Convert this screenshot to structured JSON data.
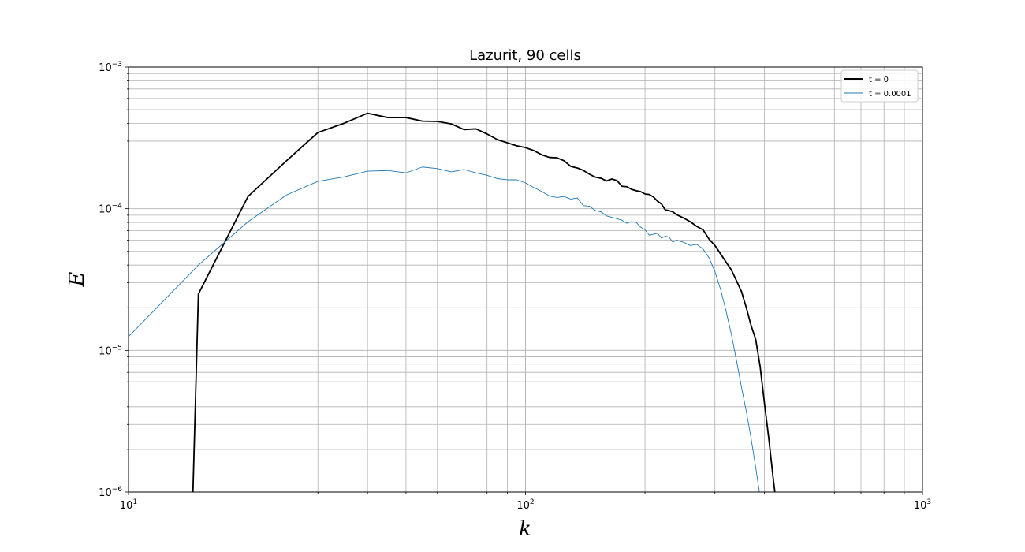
{
  "chart_data": {
    "type": "line",
    "title": "Lazurit, 90 cells",
    "xlabel": "k",
    "ylabel": "E",
    "xscale": "log",
    "yscale": "log",
    "xlim": [
      10,
      1000
    ],
    "ylim": [
      1e-06,
      0.001
    ],
    "grid": "both (major and minor)",
    "legend_position": "top-right",
    "x_tick_labels": [
      {
        "base": "10",
        "exp": "1"
      },
      {
        "base": "10",
        "exp": "2"
      },
      {
        "base": "10",
        "exp": "3"
      }
    ],
    "y_tick_labels": [
      {
        "base": "10",
        "exp": "−6"
      },
      {
        "base": "10",
        "exp": "−5"
      },
      {
        "base": "10",
        "exp": "−4"
      },
      {
        "base": "10",
        "exp": "−3"
      }
    ],
    "series": [
      {
        "name": "t = 0",
        "color": "#000000",
        "points": [
          [
            14.5,
            8e-07
          ],
          [
            15,
            2.5e-05
          ],
          [
            20,
            0.000122
          ],
          [
            25,
            0.000218
          ],
          [
            30,
            0.000345
          ],
          [
            35,
            0.000402
          ],
          [
            40,
            0.000472
          ],
          [
            45,
            0.00044
          ],
          [
            50,
            0.00044
          ],
          [
            55,
            0.000415
          ],
          [
            60,
            0.000413
          ],
          [
            65,
            0.000397
          ],
          [
            70,
            0.000362
          ],
          [
            75,
            0.000366
          ],
          [
            80,
            0.000337
          ],
          [
            85,
            0.000307
          ],
          [
            90,
            0.000292
          ],
          [
            95,
            0.000278
          ],
          [
            100,
            0.00027
          ],
          [
            105,
            0.000257
          ],
          [
            110,
            0.00024
          ],
          [
            115,
            0.00023
          ],
          [
            120,
            0.000229
          ],
          [
            125,
            0.000218
          ],
          [
            130,
            0.000199
          ],
          [
            135,
            0.000194
          ],
          [
            140,
            0.000186
          ],
          [
            145,
            0.000175
          ],
          [
            150,
            0.000167
          ],
          [
            155,
            0.000164
          ],
          [
            160,
            0.000157
          ],
          [
            165,
            0.000162
          ],
          [
            170,
            0.000158
          ],
          [
            175,
            0.000144
          ],
          [
            180,
            0.000143
          ],
          [
            185,
            0.000137
          ],
          [
            190,
            0.000134
          ],
          [
            195,
            0.000132
          ],
          [
            200,
            0.000127
          ],
          [
            205,
            0.000126
          ],
          [
            210,
            0.000121
          ],
          [
            215,
            0.000113
          ],
          [
            220,
            0.000108
          ],
          [
            225,
            9.8e-05
          ],
          [
            230,
            9.7e-05
          ],
          [
            235,
            9.5e-05
          ],
          [
            240,
            9.1e-05
          ],
          [
            250,
            8.6e-05
          ],
          [
            260,
            8.1e-05
          ],
          [
            270,
            7.5e-05
          ],
          [
            280,
            7.1e-05
          ],
          [
            290,
            6.1e-05
          ],
          [
            300,
            5.5e-05
          ],
          [
            310,
            4.8e-05
          ],
          [
            320,
            4.2e-05
          ],
          [
            330,
            3.7e-05
          ],
          [
            340,
            3.1e-05
          ],
          [
            350,
            2.6e-05
          ],
          [
            360,
            2e-05
          ],
          [
            370,
            1.5e-05
          ],
          [
            380,
            1.2e-05
          ],
          [
            390,
            7.7e-06
          ],
          [
            400,
            4.2e-06
          ],
          [
            410,
            2.4e-06
          ],
          [
            420,
            1.3e-06
          ],
          [
            430,
            7.5e-07
          ]
        ]
      },
      {
        "name": "t = 0.0001",
        "color": "#1f77b4",
        "points": [
          [
            10,
            1.25e-05
          ],
          [
            15,
            4e-05
          ],
          [
            20,
            8.1e-05
          ],
          [
            25,
            0.000125
          ],
          [
            30,
            0.000156
          ],
          [
            35,
            0.000168
          ],
          [
            40,
            0.000184
          ],
          [
            45,
            0.000186
          ],
          [
            50,
            0.000179
          ],
          [
            55,
            0.000197
          ],
          [
            60,
            0.000192
          ],
          [
            65,
            0.000182
          ],
          [
            70,
            0.000189
          ],
          [
            75,
            0.000179
          ],
          [
            80,
            0.000172
          ],
          [
            85,
            0.000163
          ],
          [
            90,
            0.00016
          ],
          [
            95,
            0.00016
          ],
          [
            100,
            0.000152
          ],
          [
            105,
            0.000141
          ],
          [
            110,
            0.000132
          ],
          [
            115,
            0.000123
          ],
          [
            120,
            0.00012
          ],
          [
            125,
            0.000122
          ],
          [
            130,
            0.000117
          ],
          [
            135,
            0.000119
          ],
          [
            140,
            0.000105
          ],
          [
            145,
            0.000104
          ],
          [
            150,
            9.7e-05
          ],
          [
            155,
            9.5e-05
          ],
          [
            160,
            8.9e-05
          ],
          [
            165,
            8.7e-05
          ],
          [
            170,
            8.5e-05
          ],
          [
            175,
            8.3e-05
          ],
          [
            180,
            7.9e-05
          ],
          [
            185,
            8.1e-05
          ],
          [
            190,
            8e-05
          ],
          [
            195,
            7.4e-05
          ],
          [
            200,
            7.1e-05
          ],
          [
            205,
            6.5e-05
          ],
          [
            210,
            6.6e-05
          ],
          [
            215,
            6.7e-05
          ],
          [
            220,
            6.2e-05
          ],
          [
            225,
            6.4e-05
          ],
          [
            230,
            6.3e-05
          ],
          [
            235,
            5.8e-05
          ],
          [
            240,
            6e-05
          ],
          [
            250,
            5.8e-05
          ],
          [
            260,
            5.5e-05
          ],
          [
            270,
            5.6e-05
          ],
          [
            280,
            5.2e-05
          ],
          [
            290,
            4.5e-05
          ],
          [
            300,
            3.6e-05
          ],
          [
            310,
            2.7e-05
          ],
          [
            320,
            1.9e-05
          ],
          [
            330,
            1.3e-05
          ],
          [
            340,
            8.5e-06
          ],
          [
            350,
            5.5e-06
          ],
          [
            360,
            3.7e-06
          ],
          [
            370,
            2.4e-06
          ],
          [
            380,
            1.5e-06
          ],
          [
            390,
            9.2e-07
          ],
          [
            400,
            5.5e-07
          ]
        ]
      }
    ]
  }
}
